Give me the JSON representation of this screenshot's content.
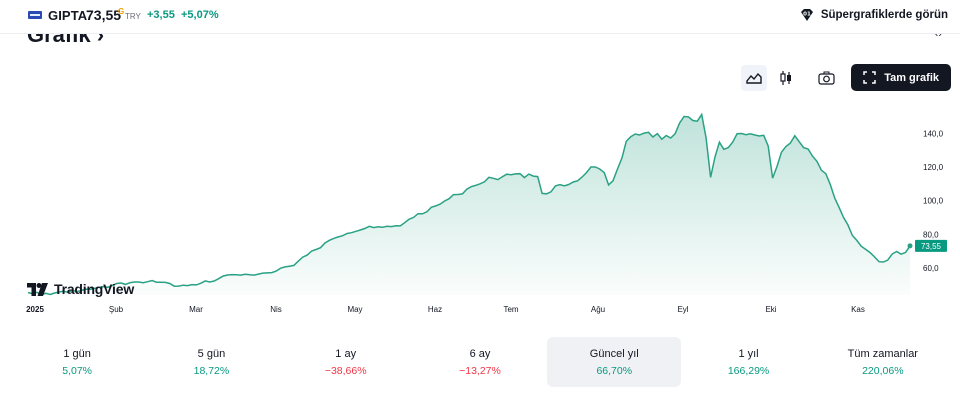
{
  "header": {
    "symbol": "GIPTA",
    "price": "73,55",
    "price_mark": "G",
    "currency": "TRY",
    "change": "+3,55",
    "change_percent": "+5,07%",
    "supercharts_label": "Süpergrafiklerde görün"
  },
  "section": {
    "title": "Grafik"
  },
  "toolbar": {
    "full_chart_label": "Tam grafik"
  },
  "colors": {
    "up": "#089981",
    "down": "#f23645",
    "line": "#2aa184"
  },
  "brand": {
    "name": "TradingView"
  },
  "chart_data": {
    "type": "area",
    "x_labels": [
      "2025",
      "Şub",
      "Mar",
      "Nis",
      "May",
      "Haz",
      "Tem",
      "Ağu",
      "Eyl",
      "Eki",
      "Kas"
    ],
    "y_ticks": [
      "140,0",
      "120,0",
      "100,0",
      "80,0",
      "60,0"
    ],
    "y_range": [
      44,
      158
    ],
    "last_value": "73,55",
    "series": [
      {
        "values": [
          45.5,
          44.8,
          45.6,
          44.1,
          45.0,
          44.3,
          45.2,
          45.8,
          46.3,
          45.6,
          46.8,
          46.0,
          46.7,
          47.5,
          47.3,
          47.9,
          48.6,
          49.0,
          48.6,
          49.6,
          50.8,
          51.1,
          50.3,
          51.3,
          51.7,
          51.7,
          51.3,
          51.9,
          52.6,
          51.6,
          51.6,
          51.5,
          50.8,
          49.2,
          49.3,
          49.8,
          49.6,
          50.2,
          50.0,
          51.0,
          52.4,
          51.7,
          52.3,
          53.7,
          55.2,
          55.9,
          56.1,
          56.0,
          55.8,
          56.3,
          56.0,
          55.8,
          56.4,
          57.0,
          57.1,
          57.3,
          58.2,
          59.9,
          60.7,
          61.1,
          61.6,
          64.1,
          66.5,
          67.7,
          70.1,
          71.0,
          72.1,
          74.9,
          76.5,
          77.6,
          78.5,
          79.2,
          80.5,
          81.0,
          81.8,
          82.6,
          83.5,
          84.8,
          84.0,
          84.5,
          84.2,
          84.8,
          84.6,
          85.1,
          85.0,
          86.9,
          89.0,
          90.1,
          92.3,
          92.2,
          93.4,
          96.1,
          96.9,
          98.0,
          99.8,
          101.2,
          103.6,
          103.7,
          104.0,
          106.8,
          108.3,
          109.1,
          110.0,
          111.2,
          113.9,
          113.3,
          112.5,
          114.1,
          115.7,
          115.4,
          115.9,
          116.0,
          113.7,
          115.8,
          114.6,
          114.3,
          104.3,
          104.1,
          105.3,
          108.8,
          109.5,
          108.8,
          109.6,
          111.1,
          111.8,
          114.0,
          116.7,
          120.0,
          120.0,
          118.8,
          116.7,
          109.4,
          111.8,
          118.8,
          125.2,
          135.3,
          138.0,
          139.6,
          139.0,
          140.1,
          140.6,
          137.8,
          139.8,
          136.5,
          138.7,
          137.2,
          139.7,
          146.0,
          150.0,
          149.8,
          147.6,
          147.2,
          151.2,
          137.2,
          113.8,
          126.0,
          134.7,
          130.5,
          131.5,
          134.8,
          139.8,
          139.9,
          139.2,
          139.7,
          139.0,
          138.4,
          138.8,
          132.4,
          113.4,
          120.3,
          128.8,
          132.2,
          134.2,
          138.6,
          135.0,
          131.5,
          130.7,
          126.5,
          123.4,
          118.1,
          116.0,
          109.7,
          101.6,
          96.0,
          90.1,
          85.6,
          79.3,
          76.4,
          73.0,
          71.1,
          69.2,
          66.6,
          63.8,
          63.6,
          64.8,
          68.4,
          69.8,
          68.2,
          69.3,
          73.2
        ]
      }
    ]
  },
  "periods": [
    {
      "label": "1 gün",
      "value": "5,07%",
      "trend": "pos"
    },
    {
      "label": "5 gün",
      "value": "18,72%",
      "trend": "pos"
    },
    {
      "label": "1 ay",
      "value": "−38,66%",
      "trend": "neg"
    },
    {
      "label": "6 ay",
      "value": "−13,27%",
      "trend": "neg"
    },
    {
      "label": "Güncel yıl",
      "value": "66,70%",
      "trend": "pos",
      "active": true
    },
    {
      "label": "1 yıl",
      "value": "166,29%",
      "trend": "pos"
    },
    {
      "label": "Tüm zamanlar",
      "value": "220,06%",
      "trend": "pos"
    }
  ]
}
